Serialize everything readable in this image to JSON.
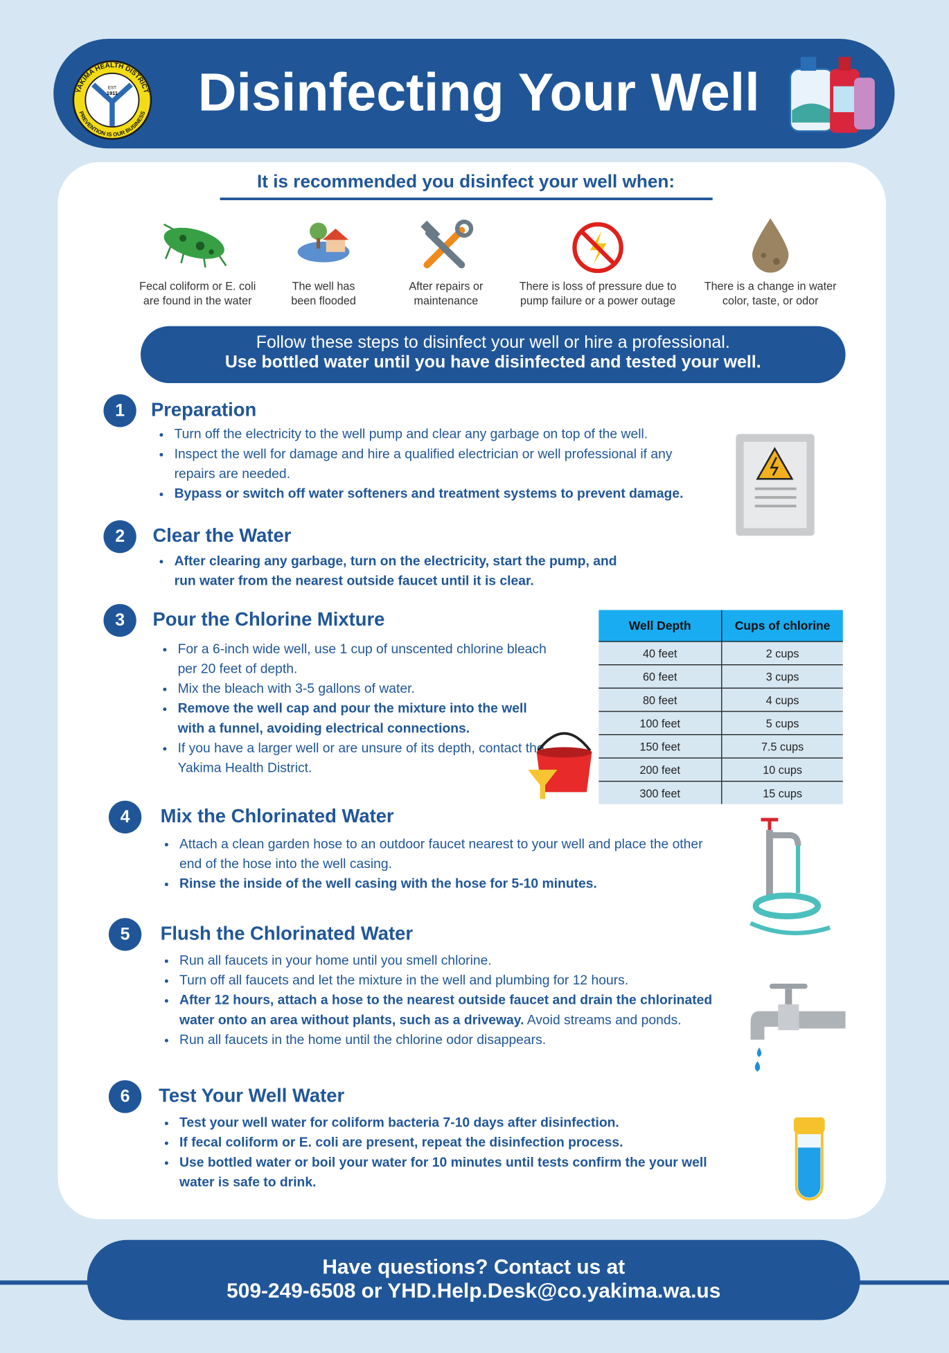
{
  "header": {
    "title": "Disinfecting Your Well",
    "logo": {
      "name": "YAKIMA HEALTH DISTRICT",
      "est": "EST",
      "year": "1911",
      "motto": "PREVENTION IS OUR BUSINESS"
    }
  },
  "triggers": {
    "heading": "It is recommended you disinfect your well when:",
    "items": [
      {
        "lines": [
          "Fecal coliform or E. coli",
          "are found in the water"
        ]
      },
      {
        "lines": [
          "The well has",
          "been flooded"
        ]
      },
      {
        "lines": [
          "After repairs or",
          "maintenance"
        ]
      },
      {
        "lines": [
          "There is loss of pressure due to",
          "pump failure or a power outage"
        ]
      },
      {
        "lines": [
          "There is a change in water",
          "color, taste, or odor"
        ]
      }
    ]
  },
  "banner": {
    "line1": "Follow these steps to disinfect your well or hire a professional.",
    "line2": "Use bottled water until you have disinfected and tested your well."
  },
  "steps": [
    {
      "number": 1,
      "title": "Preparation",
      "bullets": [
        [
          {
            "text": "Turn off the electricity to the well pump and clear any garbage on top of the well.",
            "bold": false
          }
        ],
        [
          {
            "text": "Inspect the well for damage and hire a qualified electrician or well professional if any repairs are needed.",
            "bold": false
          }
        ],
        [
          {
            "text": "Bypass or switch off water softeners and treatment systems to prevent damage.",
            "bold": true
          }
        ]
      ]
    },
    {
      "number": 2,
      "title": "Clear the Water",
      "bullets": [
        [
          {
            "text": "After clearing any garbage, turn on the electricity, start the pump, and run water from the nearest outside faucet until it is clear.",
            "bold": true
          }
        ]
      ]
    },
    {
      "number": 3,
      "title": "Pour the Chlorine Mixture",
      "bullets": [
        [
          {
            "text": "For a 6-inch wide well, use 1 cup of unscented chlorine bleach per 20 feet of depth.",
            "bold": false
          }
        ],
        [
          {
            "text": "Mix the bleach with 3-5 gallons of water.",
            "bold": false
          }
        ],
        [
          {
            "text": "Remove the well cap and pour the mixture into the well with a funnel, avoiding electrical connections.",
            "bold": true
          }
        ],
        [
          {
            "text": "If you have a larger well or are unsure of its depth, contact the Yakima Health District.",
            "bold": false
          }
        ]
      ]
    },
    {
      "number": 4,
      "title": "Mix the Chlorinated Water",
      "bullets": [
        [
          {
            "text": "Attach a clean garden hose to an outdoor faucet nearest to your well and place the other end of the hose into the well casing.",
            "bold": false
          }
        ],
        [
          {
            "text": "Rinse the inside of the well casing with the hose for 5-10 minutes.",
            "bold": true
          }
        ]
      ]
    },
    {
      "number": 5,
      "title": "Flush the Chlorinated Water",
      "bullets": [
        [
          {
            "text": "Run all faucets in your home until you smell chlorine.",
            "bold": false
          }
        ],
        [
          {
            "text": "Turn off all faucets and let the mixture in the well and plumbing for 12 hours.",
            "bold": false
          }
        ],
        [
          {
            "text": "After 12 hours, attach a hose to the nearest outside faucet and drain the chlorinated water onto an area without plants, such as a driveway.",
            "bold": true
          },
          {
            "text": " Avoid streams and ponds.",
            "bold": false
          }
        ],
        [
          {
            "text": "Run all faucets in the home until the chlorine odor disappears.",
            "bold": false
          }
        ]
      ]
    },
    {
      "number": 6,
      "title": "Test Your Well Water",
      "bullets": [
        [
          {
            "text": "Test your well water for coliform bacteria 7-10 days after disinfection.",
            "bold": true
          }
        ],
        [
          {
            "text": "If fecal coliform or E. coli are present, repeat the disinfection process.",
            "bold": true
          }
        ],
        [
          {
            "text": "Use bottled water or boil your water for 10 minutes until tests confirm the your well water is safe to drink.",
            "bold": true
          }
        ]
      ]
    }
  ],
  "table": {
    "columns": [
      "Well Depth",
      "Cups of chlorine"
    ],
    "rows": [
      [
        "40 feet",
        "2 cups"
      ],
      [
        "60 feet",
        "3 cups"
      ],
      [
        "80 feet",
        "4 cups"
      ],
      [
        "100 feet",
        "5 cups"
      ],
      [
        "150 feet",
        "7.5 cups"
      ],
      [
        "200 feet",
        "10 cups"
      ],
      [
        "300 feet",
        "15 cups"
      ]
    ]
  },
  "footer": {
    "line1": "Have questions? Contact us at",
    "line2": "509-249-6508 or YHD.Help.Desk@co.yakima.wa.us"
  }
}
